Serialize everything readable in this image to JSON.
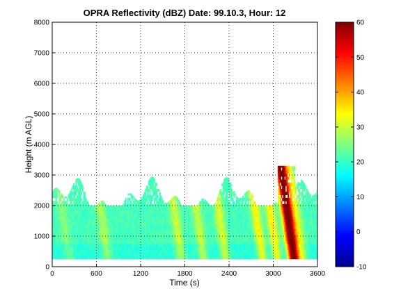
{
  "chart_data": {
    "type": "heatmap",
    "title": "OPRA Reflectivity (dBZ)  Date: 99.10.3, Hour: 12",
    "xlabel": "Time (s)",
    "ylabel": "Height (m AGL)",
    "xlim": [
      0,
      3600
    ],
    "ylim": [
      0,
      8000
    ],
    "x_ticks": [
      "0",
      "600",
      "1200",
      "1800",
      "2400",
      "3000",
      "3600"
    ],
    "y_ticks": [
      "0",
      "1000",
      "2000",
      "3000",
      "4000",
      "5000",
      "6000",
      "7000",
      "8000"
    ],
    "grid": "dotted",
    "colorbar": {
      "colormap": "jet",
      "range": [
        -10,
        60
      ],
      "ticks": [
        "-10",
        "0",
        "10",
        "20",
        "30",
        "40",
        "50",
        "60"
      ]
    },
    "data_extent": {
      "height_bottom_m": 250,
      "height_top_m": 3000,
      "time_start_s": 0,
      "time_end_s": 3600,
      "typical_value_dbz": 20,
      "bands": [
        {
          "time_s": 180,
          "value_dbz": 24
        },
        {
          "time_s": 700,
          "value_dbz": 27
        },
        {
          "time_s": 1700,
          "value_dbz": 29
        },
        {
          "time_s": 2000,
          "value_dbz": 29
        },
        {
          "time_s": 2300,
          "value_dbz": 30
        },
        {
          "time_s": 2800,
          "value_dbz": 33
        },
        {
          "time_s": 3000,
          "value_dbz": 34
        },
        {
          "time_s": 3200,
          "value_dbz": 44
        },
        {
          "time_s": 3250,
          "value_dbz": 48
        },
        {
          "time_s": 3350,
          "value_dbz": 30
        }
      ]
    }
  }
}
